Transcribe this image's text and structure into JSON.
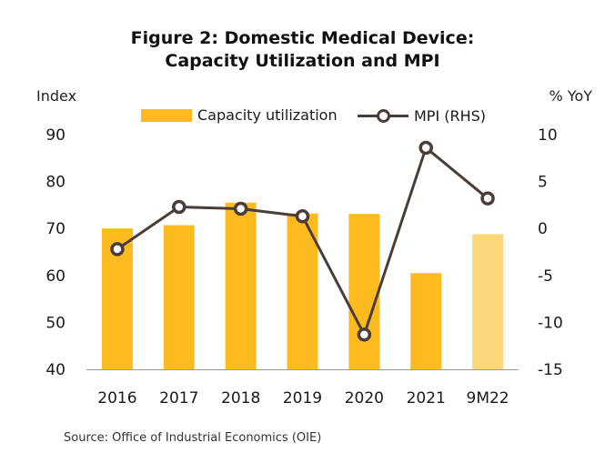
{
  "title_line1": "Figure 2:  Domestic Medical Device:",
  "title_line2": "Capacity Utilization and MPI",
  "left_axis_label": "Index",
  "right_axis_label": "% YoY",
  "source": "Source: Office of Industrial Economics (OIE)",
  "colors": {
    "bar": "#FDBB1F",
    "bar_estimate": "#FDD87A",
    "line": "#4A3C38",
    "axis": "#999999"
  },
  "chart_data": {
    "type": "bar",
    "categories": [
      "2016",
      "2017",
      "2018",
      "2019",
      "2020",
      "2021",
      "9M22"
    ],
    "series": [
      {
        "name": "Capacity utilization",
        "axis": "left",
        "type": "bar",
        "values": [
          70.0,
          70.7,
          75.5,
          73.2,
          73.1,
          60.5,
          68.8
        ]
      },
      {
        "name": "MPI (RHS)",
        "axis": "right",
        "type": "line",
        "values": [
          -2.2,
          2.3,
          2.1,
          1.3,
          -11.3,
          8.6,
          3.2
        ]
      }
    ],
    "left_axis": {
      "min": 40,
      "max": 90,
      "ticks": [
        40,
        50,
        60,
        70,
        80,
        90
      ]
    },
    "right_axis": {
      "min": -15,
      "max": 10,
      "ticks": [
        -15,
        -10,
        -5,
        0,
        5,
        10
      ]
    },
    "grid": false,
    "legend_position": "top"
  }
}
